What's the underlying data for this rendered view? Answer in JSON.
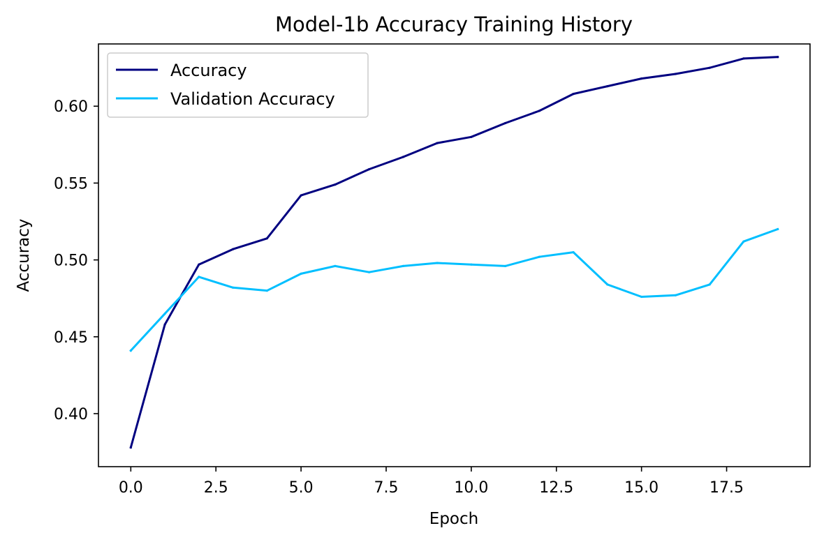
{
  "chart_data": {
    "type": "line",
    "title": "Model-1b Accuracy Training History",
    "xlabel": "Epoch",
    "ylabel": "Accuracy",
    "x": [
      0,
      1,
      2,
      3,
      4,
      5,
      6,
      7,
      8,
      9,
      10,
      11,
      12,
      13,
      14,
      15,
      16,
      17,
      18,
      19
    ],
    "xlim": [
      -0.95,
      19.95
    ],
    "ylim": [
      0.3655,
      0.6405
    ],
    "xticks": [
      0.0,
      2.5,
      5.0,
      7.5,
      10.0,
      12.5,
      15.0,
      17.5
    ],
    "xtick_labels": [
      "0.0",
      "2.5",
      "5.0",
      "7.5",
      "10.0",
      "12.5",
      "15.0",
      "17.5"
    ],
    "yticks": [
      0.4,
      0.45,
      0.5,
      0.55,
      0.6
    ],
    "ytick_labels": [
      "0.40",
      "0.45",
      "0.50",
      "0.55",
      "0.60"
    ],
    "grid": false,
    "legend_position": "upper-left",
    "series": [
      {
        "name": "Accuracy",
        "color": "#000080",
        "values": [
          0.378,
          0.458,
          0.497,
          0.507,
          0.514,
          0.542,
          0.549,
          0.559,
          0.567,
          0.576,
          0.58,
          0.589,
          0.597,
          0.608,
          0.613,
          0.618,
          0.621,
          0.625,
          0.631,
          0.632
        ]
      },
      {
        "name": "Validation Accuracy",
        "color": "#00bfff",
        "values": [
          0.441,
          0.465,
          0.489,
          0.482,
          0.48,
          0.491,
          0.496,
          0.492,
          0.496,
          0.498,
          0.497,
          0.496,
          0.502,
          0.505,
          0.484,
          0.476,
          0.477,
          0.484,
          0.512,
          0.52
        ]
      }
    ]
  }
}
